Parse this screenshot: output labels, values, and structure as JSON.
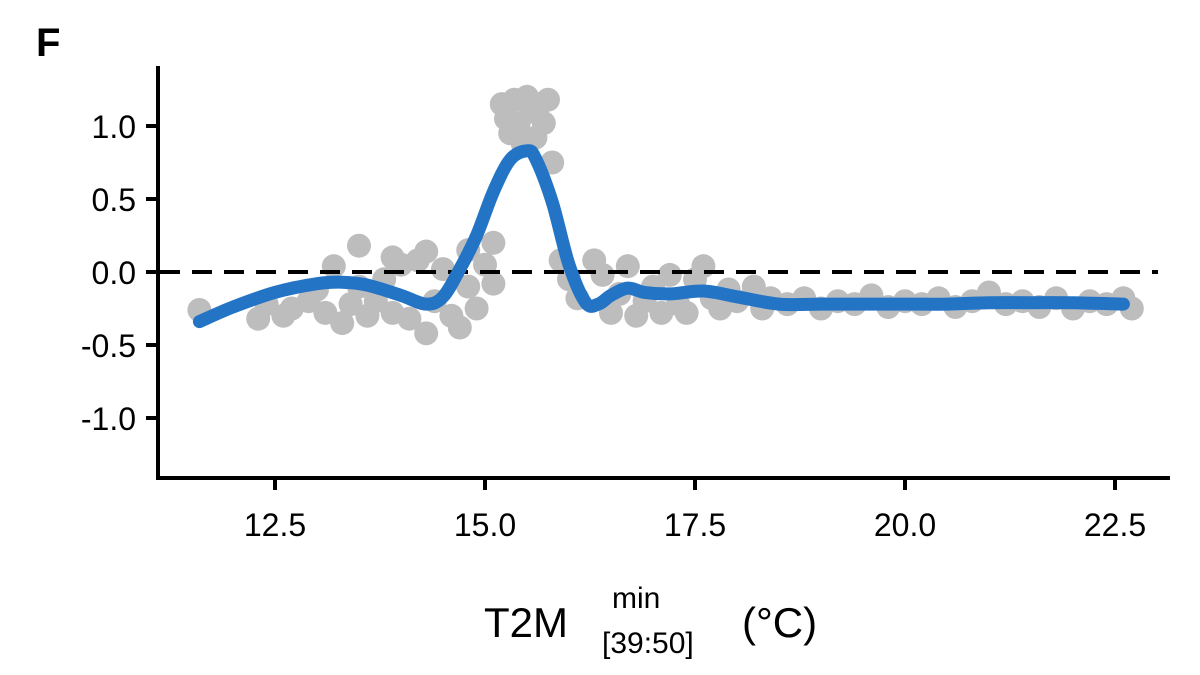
{
  "panel_label": "F",
  "chart_data": {
    "type": "scatter",
    "xlabel": {
      "main": "T2M",
      "superscript": "min",
      "subscript": "[39:50]",
      "unit": "(°C)"
    },
    "ylabel": "",
    "xlim": [
      11.3,
      23.2
    ],
    "ylim": [
      -1.4,
      1.4
    ],
    "x_ticks": [
      12.5,
      15.0,
      17.5,
      20.0,
      22.5
    ],
    "x_tick_labels": [
      "12.5",
      "15.0",
      "17.5",
      "20.0",
      "22.5"
    ],
    "y_ticks": [
      1.0,
      0.5,
      0.0,
      -0.5,
      -1.0
    ],
    "y_tick_labels": [
      "1.0",
      "0.5",
      "0.0",
      "-0.5",
      "-1.0"
    ],
    "reference_line": {
      "y": 0.0,
      "style": "dashed",
      "color": "#000000"
    },
    "grid": false,
    "legend": "none",
    "colors": {
      "points": "#bdbdbd",
      "line": "#2474c6"
    },
    "series": [
      {
        "type": "scatter",
        "points": [
          [
            11.6,
            -0.26
          ],
          [
            12.3,
            -0.32
          ],
          [
            12.4,
            -0.22
          ],
          [
            12.6,
            -0.3
          ],
          [
            12.7,
            -0.25
          ],
          [
            12.9,
            -0.2
          ],
          [
            13.0,
            -0.12
          ],
          [
            13.1,
            -0.28
          ],
          [
            13.2,
            0.04
          ],
          [
            13.3,
            -0.35
          ],
          [
            13.4,
            -0.22
          ],
          [
            13.5,
            -0.1
          ],
          [
            13.5,
            0.18
          ],
          [
            13.6,
            -0.3
          ],
          [
            13.7,
            -0.2
          ],
          [
            13.8,
            -0.05
          ],
          [
            13.9,
            0.1
          ],
          [
            13.9,
            -0.28
          ],
          [
            14.0,
            0.05
          ],
          [
            14.1,
            -0.32
          ],
          [
            14.2,
            0.08
          ],
          [
            14.3,
            0.14
          ],
          [
            14.3,
            -0.42
          ],
          [
            14.4,
            -0.2
          ],
          [
            14.5,
            0.02
          ],
          [
            14.6,
            -0.3
          ],
          [
            14.7,
            -0.38
          ],
          [
            14.8,
            0.15
          ],
          [
            14.8,
            -0.1
          ],
          [
            14.9,
            -0.25
          ],
          [
            15.0,
            0.05
          ],
          [
            15.1,
            0.2
          ],
          [
            15.1,
            -0.08
          ],
          [
            15.2,
            1.15
          ],
          [
            15.25,
            1.05
          ],
          [
            15.3,
            0.95
          ],
          [
            15.35,
            1.18
          ],
          [
            15.4,
            1.02
          ],
          [
            15.45,
            0.88
          ],
          [
            15.5,
            1.2
          ],
          [
            15.55,
            1.1
          ],
          [
            15.6,
            0.92
          ],
          [
            15.65,
            1.15
          ],
          [
            15.7,
            1.02
          ],
          [
            15.75,
            1.18
          ],
          [
            15.8,
            0.75
          ],
          [
            15.9,
            0.08
          ],
          [
            16.0,
            -0.05
          ],
          [
            16.1,
            -0.18
          ],
          [
            16.3,
            0.08
          ],
          [
            16.4,
            -0.02
          ],
          [
            16.5,
            -0.28
          ],
          [
            16.6,
            -0.15
          ],
          [
            16.7,
            0.04
          ],
          [
            16.8,
            -0.3
          ],
          [
            16.9,
            -0.2
          ],
          [
            17.0,
            -0.1
          ],
          [
            17.1,
            -0.28
          ],
          [
            17.2,
            -0.02
          ],
          [
            17.3,
            -0.22
          ],
          [
            17.4,
            -0.28
          ],
          [
            17.5,
            -0.05
          ],
          [
            17.6,
            0.04
          ],
          [
            17.7,
            -0.18
          ],
          [
            17.8,
            -0.25
          ],
          [
            17.9,
            -0.12
          ],
          [
            18.0,
            -0.2
          ],
          [
            18.2,
            -0.1
          ],
          [
            18.3,
            -0.25
          ],
          [
            18.4,
            -0.18
          ],
          [
            18.6,
            -0.22
          ],
          [
            18.8,
            -0.18
          ],
          [
            19.0,
            -0.25
          ],
          [
            19.2,
            -0.2
          ],
          [
            19.4,
            -0.22
          ],
          [
            19.6,
            -0.16
          ],
          [
            19.8,
            -0.24
          ],
          [
            20.0,
            -0.2
          ],
          [
            20.2,
            -0.22
          ],
          [
            20.4,
            -0.18
          ],
          [
            20.6,
            -0.24
          ],
          [
            20.8,
            -0.2
          ],
          [
            21.0,
            -0.14
          ],
          [
            21.2,
            -0.22
          ],
          [
            21.4,
            -0.2
          ],
          [
            21.6,
            -0.24
          ],
          [
            21.8,
            -0.18
          ],
          [
            22.0,
            -0.25
          ],
          [
            22.2,
            -0.2
          ],
          [
            22.4,
            -0.22
          ],
          [
            22.6,
            -0.18
          ],
          [
            22.7,
            -0.25
          ]
        ]
      },
      {
        "type": "line",
        "points": [
          [
            11.6,
            -0.34
          ],
          [
            12.0,
            -0.24
          ],
          [
            12.5,
            -0.14
          ],
          [
            13.0,
            -0.08
          ],
          [
            13.3,
            -0.07
          ],
          [
            13.6,
            -0.09
          ],
          [
            14.0,
            -0.16
          ],
          [
            14.3,
            -0.22
          ],
          [
            14.5,
            -0.17
          ],
          [
            14.7,
            0.02
          ],
          [
            14.9,
            0.25
          ],
          [
            15.1,
            0.55
          ],
          [
            15.3,
            0.77
          ],
          [
            15.5,
            0.83
          ],
          [
            15.6,
            0.78
          ],
          [
            15.8,
            0.48
          ],
          [
            16.0,
            0.05
          ],
          [
            16.2,
            -0.21
          ],
          [
            16.35,
            -0.22
          ],
          [
            16.5,
            -0.16
          ],
          [
            16.7,
            -0.11
          ],
          [
            16.9,
            -0.14
          ],
          [
            17.2,
            -0.15
          ],
          [
            17.6,
            -0.13
          ],
          [
            18.0,
            -0.17
          ],
          [
            18.5,
            -0.22
          ],
          [
            19.0,
            -0.22
          ],
          [
            19.5,
            -0.22
          ],
          [
            20.0,
            -0.22
          ],
          [
            20.5,
            -0.22
          ],
          [
            21.0,
            -0.21
          ],
          [
            21.5,
            -0.21
          ],
          [
            22.0,
            -0.21
          ],
          [
            22.6,
            -0.22
          ]
        ]
      }
    ]
  }
}
